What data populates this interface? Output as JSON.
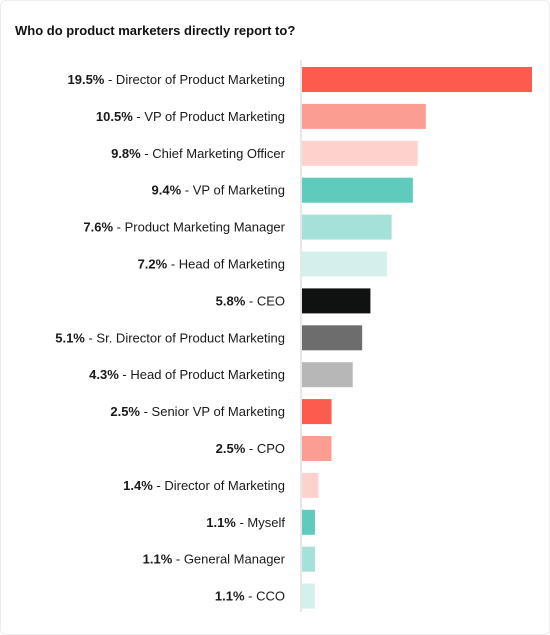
{
  "chart_data": {
    "type": "bar",
    "orientation": "horizontal",
    "title": "Who do product marketers directly report to?",
    "unit": "%",
    "xlim": [
      0,
      19.5
    ],
    "grid": false,
    "legend": "none",
    "categories": [
      "Director of Product Marketing",
      "VP of Product Marketing",
      "Chief Marketing Officer",
      "VP of Marketing",
      "Product Marketing Manager",
      "Head of Marketing",
      "CEO",
      "Sr. Director of Product Marketing",
      "Head of Product Marketing",
      "Senior VP of Marketing",
      "CPO",
      "Director of Marketing",
      "Myself",
      "General Manager",
      "CCO"
    ],
    "values": [
      19.5,
      10.5,
      9.8,
      9.4,
      7.6,
      7.2,
      5.8,
      5.1,
      4.3,
      2.5,
      2.5,
      1.4,
      1.1,
      1.1,
      1.1
    ],
    "value_labels": [
      "19.5%",
      "10.5%",
      "9.8%",
      "9.4%",
      "7.6%",
      "7.2%",
      "5.8%",
      "5.1%",
      "4.3%",
      "2.5%",
      "2.5%",
      "1.4%",
      "1.1%",
      "1.1%",
      "1.1%"
    ],
    "colors": [
      "#fd5b4e",
      "#fc9d91",
      "#fdd2cc",
      "#5fcbbd",
      "#a5e1d9",
      "#d4f0ed",
      "#0f1211",
      "#6d6d6d",
      "#b7b7b7",
      "#fd5b4e",
      "#fc9d91",
      "#fdd2cc",
      "#5fcbbd",
      "#a5e1d9",
      "#d4f0ed"
    ]
  }
}
